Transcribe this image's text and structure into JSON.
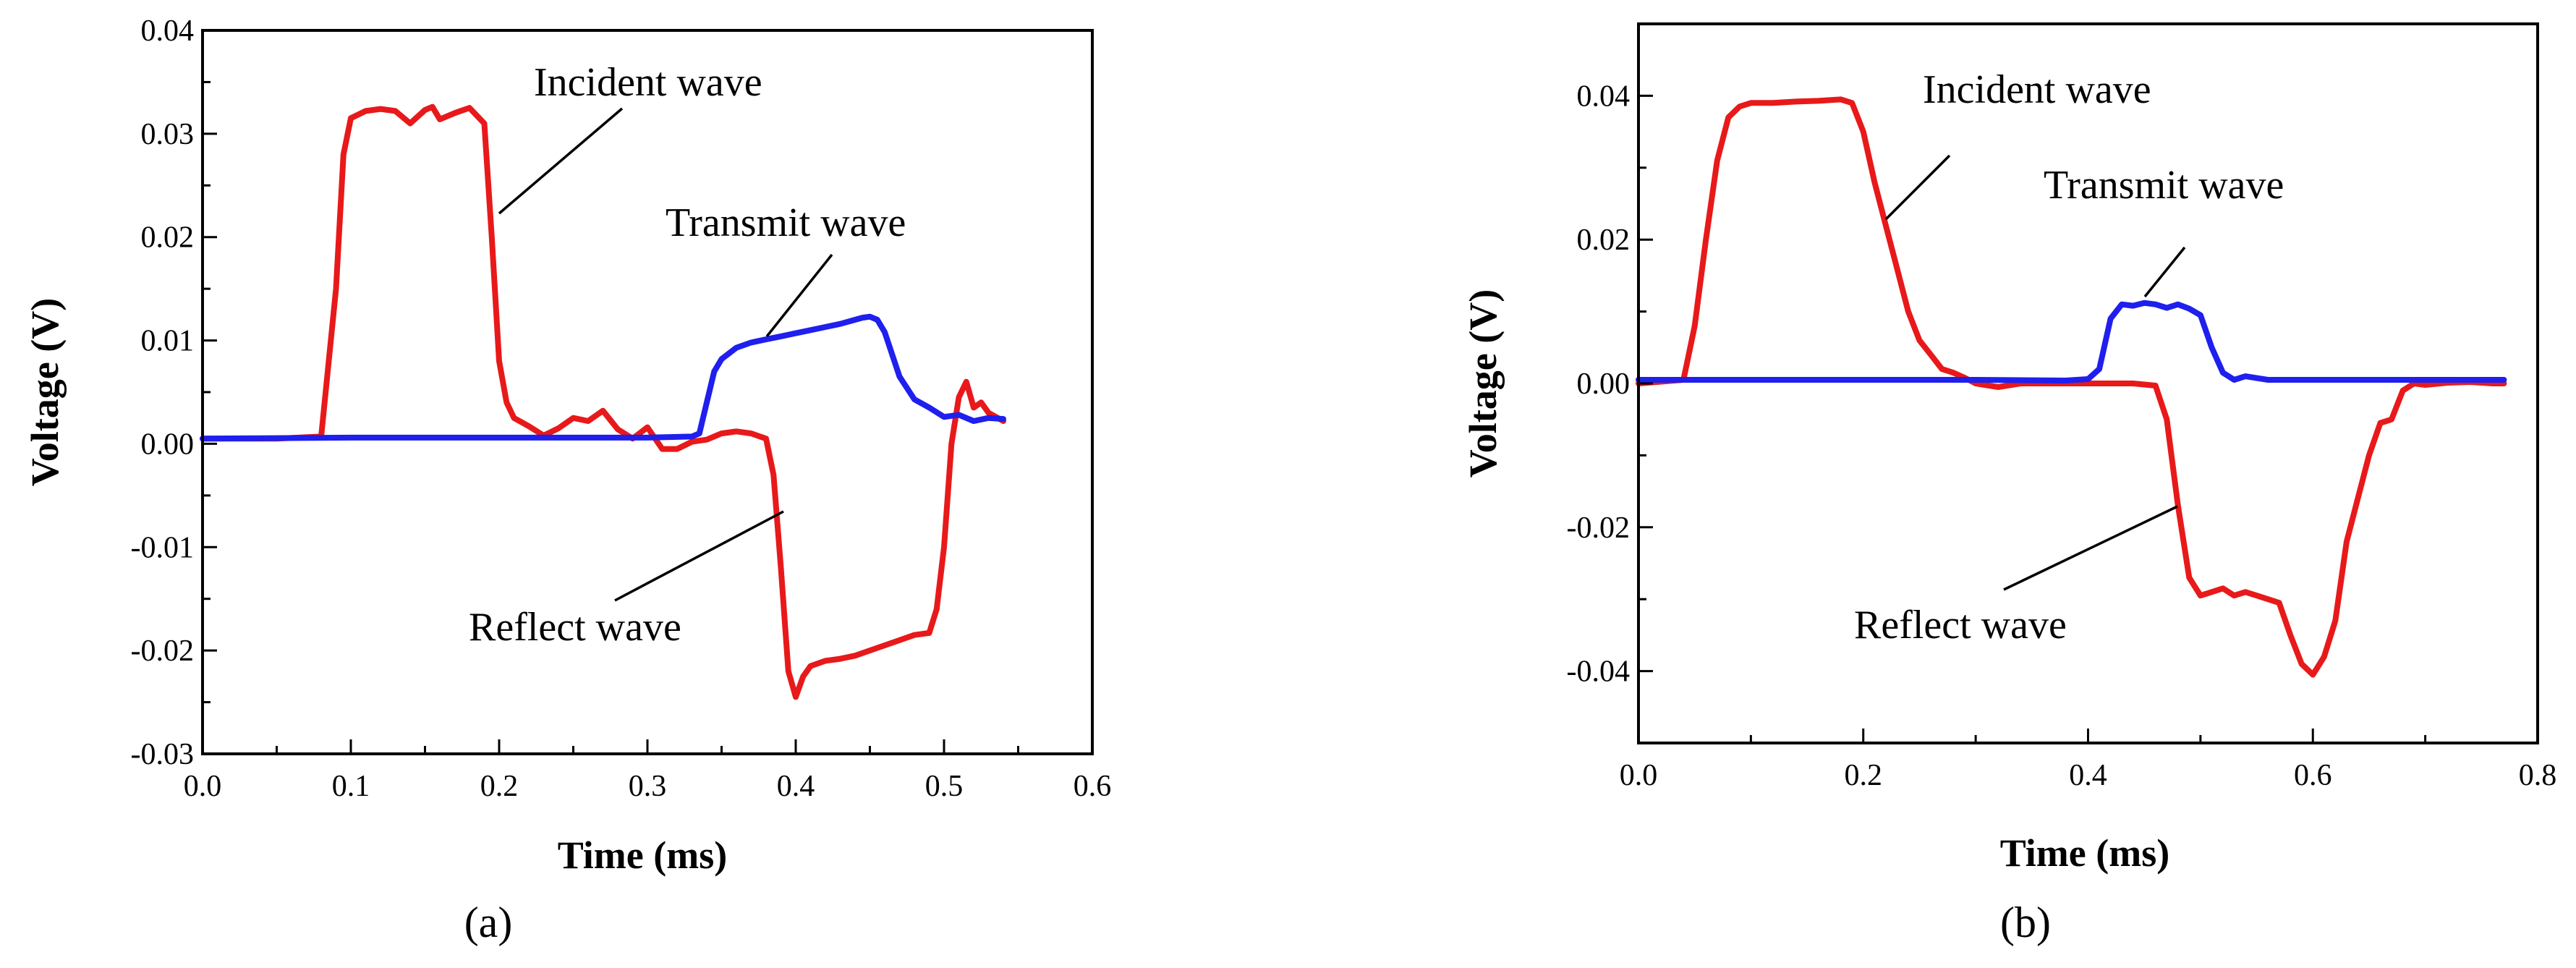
{
  "chart_data": [
    {
      "type": "line",
      "panel_label": "(a)",
      "title": "",
      "xlabel": "Time (ms)",
      "ylabel": "Voltage (V)",
      "xlim": [
        0.0,
        0.6
      ],
      "ylim": [
        -0.03,
        0.04
      ],
      "grid": false,
      "xticks": [
        0.0,
        0.1,
        0.2,
        0.3,
        0.4,
        0.5,
        0.6
      ],
      "xtick_labels": [
        "0.0",
        "0.1",
        "0.2",
        "0.3",
        "0.4",
        "0.5",
        "0.6"
      ],
      "yticks": [
        -0.03,
        -0.02,
        -0.01,
        0.0,
        0.01,
        0.02,
        0.03,
        0.04
      ],
      "ytick_labels": [
        "-0.03",
        "-0.02",
        "-0.01",
        "0.00",
        "0.01",
        "0.02",
        "0.03",
        "0.04"
      ],
      "series": [
        {
          "name": "Incident / Reflect wave",
          "color": "#e8191a",
          "x": [
            0.0,
            0.05,
            0.08,
            0.09,
            0.095,
            0.1,
            0.11,
            0.12,
            0.13,
            0.14,
            0.15,
            0.155,
            0.16,
            0.17,
            0.18,
            0.19,
            0.195,
            0.2,
            0.205,
            0.21,
            0.22,
            0.23,
            0.24,
            0.25,
            0.26,
            0.27,
            0.28,
            0.29,
            0.3,
            0.31,
            0.32,
            0.33,
            0.34,
            0.35,
            0.36,
            0.37,
            0.38,
            0.385,
            0.39,
            0.395,
            0.4,
            0.405,
            0.41,
            0.42,
            0.43,
            0.44,
            0.45,
            0.46,
            0.47,
            0.48,
            0.49,
            0.495,
            0.5,
            0.505,
            0.51,
            0.515,
            0.52,
            0.525,
            0.53,
            0.54
          ],
          "values": [
            0.0005,
            0.0005,
            0.0007,
            0.015,
            0.028,
            0.0315,
            0.0322,
            0.0324,
            0.0322,
            0.031,
            0.0323,
            0.0326,
            0.0314,
            0.032,
            0.0325,
            0.031,
            0.02,
            0.008,
            0.004,
            0.0025,
            0.0017,
            0.0008,
            0.0015,
            0.0025,
            0.0022,
            0.0032,
            0.0014,
            0.0005,
            0.0016,
            -0.0005,
            -0.0005,
            0.0002,
            0.0004,
            0.001,
            0.0012,
            0.001,
            0.0005,
            -0.003,
            -0.012,
            -0.022,
            -0.0245,
            -0.0225,
            -0.0215,
            -0.021,
            -0.0208,
            -0.0205,
            -0.02,
            -0.0195,
            -0.019,
            -0.0185,
            -0.0183,
            -0.016,
            -0.01,
            0.0,
            0.0045,
            0.006,
            0.0035,
            0.004,
            0.003,
            0.0022
          ]
        },
        {
          "name": "Transmit wave",
          "color": "#1f1fee",
          "x": [
            0.0,
            0.1,
            0.2,
            0.3,
            0.33,
            0.335,
            0.34,
            0.345,
            0.35,
            0.36,
            0.37,
            0.38,
            0.39,
            0.4,
            0.41,
            0.42,
            0.43,
            0.44,
            0.445,
            0.45,
            0.455,
            0.46,
            0.47,
            0.48,
            0.49,
            0.5,
            0.51,
            0.52,
            0.53,
            0.54
          ],
          "values": [
            0.0005,
            0.0006,
            0.0006,
            0.0006,
            0.0007,
            0.001,
            0.004,
            0.007,
            0.0082,
            0.0093,
            0.0098,
            0.0101,
            0.0104,
            0.0107,
            0.011,
            0.0113,
            0.0116,
            0.012,
            0.0122,
            0.0123,
            0.012,
            0.0108,
            0.0065,
            0.0043,
            0.0035,
            0.0026,
            0.0028,
            0.0022,
            0.0025,
            0.0024
          ]
        }
      ],
      "annotations": [
        "Incident wave",
        "Transmit wave",
        "Reflect wave"
      ]
    },
    {
      "type": "line",
      "panel_label": "(b)",
      "title": "",
      "xlabel": "Time (ms)",
      "ylabel": "Voltage (V)",
      "xlim": [
        0.0,
        0.8
      ],
      "ylim": [
        -0.05,
        0.05
      ],
      "grid": false,
      "xticks": [
        0.0,
        0.2,
        0.4,
        0.6,
        0.8
      ],
      "xtick_labels": [
        "0.0",
        "0.2",
        "0.4",
        "0.6",
        "0.8"
      ],
      "yticks": [
        -0.04,
        -0.02,
        0.0,
        0.02,
        0.04
      ],
      "ytick_labels": [
        "-0.04",
        "-0.02",
        "0.00",
        "0.02",
        "0.04"
      ],
      "series": [
        {
          "name": "Incident / Reflect wave",
          "color": "#e8191a",
          "x": [
            0.0,
            0.04,
            0.05,
            0.06,
            0.07,
            0.08,
            0.09,
            0.1,
            0.12,
            0.14,
            0.16,
            0.18,
            0.19,
            0.2,
            0.21,
            0.22,
            0.23,
            0.24,
            0.25,
            0.26,
            0.27,
            0.28,
            0.29,
            0.3,
            0.32,
            0.34,
            0.36,
            0.38,
            0.4,
            0.42,
            0.44,
            0.46,
            0.47,
            0.48,
            0.49,
            0.5,
            0.51,
            0.52,
            0.53,
            0.54,
            0.55,
            0.56,
            0.57,
            0.58,
            0.59,
            0.6,
            0.61,
            0.62,
            0.63,
            0.64,
            0.65,
            0.66,
            0.67,
            0.68,
            0.69,
            0.7,
            0.72,
            0.74,
            0.76,
            0.77
          ],
          "values": [
            0.0,
            0.0005,
            0.008,
            0.02,
            0.031,
            0.037,
            0.0385,
            0.039,
            0.039,
            0.0392,
            0.0393,
            0.0395,
            0.039,
            0.035,
            0.028,
            0.022,
            0.016,
            0.01,
            0.006,
            0.004,
            0.002,
            0.0015,
            0.0008,
            0.0,
            -0.0005,
            0.0,
            0.0,
            0.0,
            0.0,
            0.0,
            0.0,
            -0.0003,
            -0.005,
            -0.017,
            -0.027,
            -0.0295,
            -0.029,
            -0.0285,
            -0.0295,
            -0.029,
            -0.0295,
            -0.03,
            -0.0305,
            -0.035,
            -0.039,
            -0.0405,
            -0.038,
            -0.033,
            -0.022,
            -0.016,
            -0.01,
            -0.0055,
            -0.005,
            -0.001,
            0.0,
            -0.0002,
            0.0001,
            0.0002,
            0.0,
            0.0
          ]
        },
        {
          "name": "Transmit wave",
          "color": "#1f1fee",
          "x": [
            0.0,
            0.1,
            0.2,
            0.3,
            0.38,
            0.4,
            0.41,
            0.42,
            0.43,
            0.44,
            0.45,
            0.46,
            0.47,
            0.48,
            0.49,
            0.5,
            0.51,
            0.52,
            0.53,
            0.54,
            0.56,
            0.6,
            0.7,
            0.77
          ],
          "values": [
            0.0005,
            0.0005,
            0.0005,
            0.0005,
            0.0004,
            0.0006,
            0.002,
            0.009,
            0.011,
            0.0108,
            0.0112,
            0.011,
            0.0105,
            0.011,
            0.0104,
            0.0095,
            0.005,
            0.0015,
            0.0005,
            0.001,
            0.0005,
            0.0005,
            0.0005,
            0.0005
          ]
        }
      ],
      "annotations": [
        "Incident wave",
        "Transmit wave",
        "Reflect wave"
      ]
    }
  ]
}
